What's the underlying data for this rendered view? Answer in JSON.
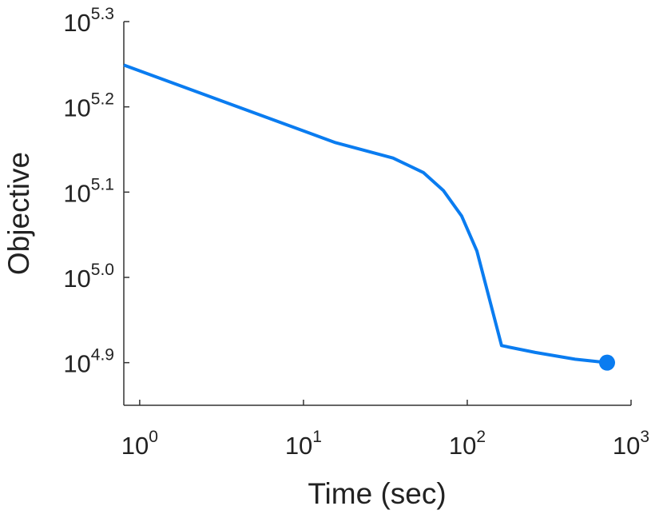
{
  "chart_data": {
    "type": "line",
    "xlabel": "Time (sec)",
    "ylabel": "Objective",
    "xscale": "log",
    "yscale": "log",
    "x": [
      0.8,
      15.7,
      35.2,
      53.9,
      71.4,
      92.4,
      114.5,
      162,
      260,
      456,
      714
    ],
    "series": [
      {
        "color": "#0a7cf0",
        "marker_last": true,
        "values": [
          177419,
          143880,
          138038,
          132739,
          126474,
          118032,
          107399,
          83176,
          81658,
          80168,
          79433
        ]
      }
    ],
    "xlim": [
      0.8,
      1000
    ],
    "ylim": [
      70795,
      199526
    ],
    "xticks": [
      {
        "value": 1,
        "label": {
          "base": "10",
          "exp": "0"
        }
      },
      {
        "value": 10,
        "label": {
          "base": "10",
          "exp": "1"
        }
      },
      {
        "value": 100,
        "label": {
          "base": "10",
          "exp": "2"
        }
      },
      {
        "value": 1000,
        "label": {
          "base": "10",
          "exp": "3"
        }
      }
    ],
    "yticks": [
      {
        "value": 79433,
        "label": {
          "base": "10",
          "exp": "4.9"
        }
      },
      {
        "value": 100000,
        "label": {
          "base": "10",
          "exp": "5.0"
        }
      },
      {
        "value": 125893,
        "label": {
          "base": "10",
          "exp": "5.1"
        }
      },
      {
        "value": 158489,
        "label": {
          "base": "10",
          "exp": "5.2"
        }
      },
      {
        "value": 199526,
        "label": {
          "base": "10",
          "exp": "5.3"
        }
      }
    ]
  }
}
